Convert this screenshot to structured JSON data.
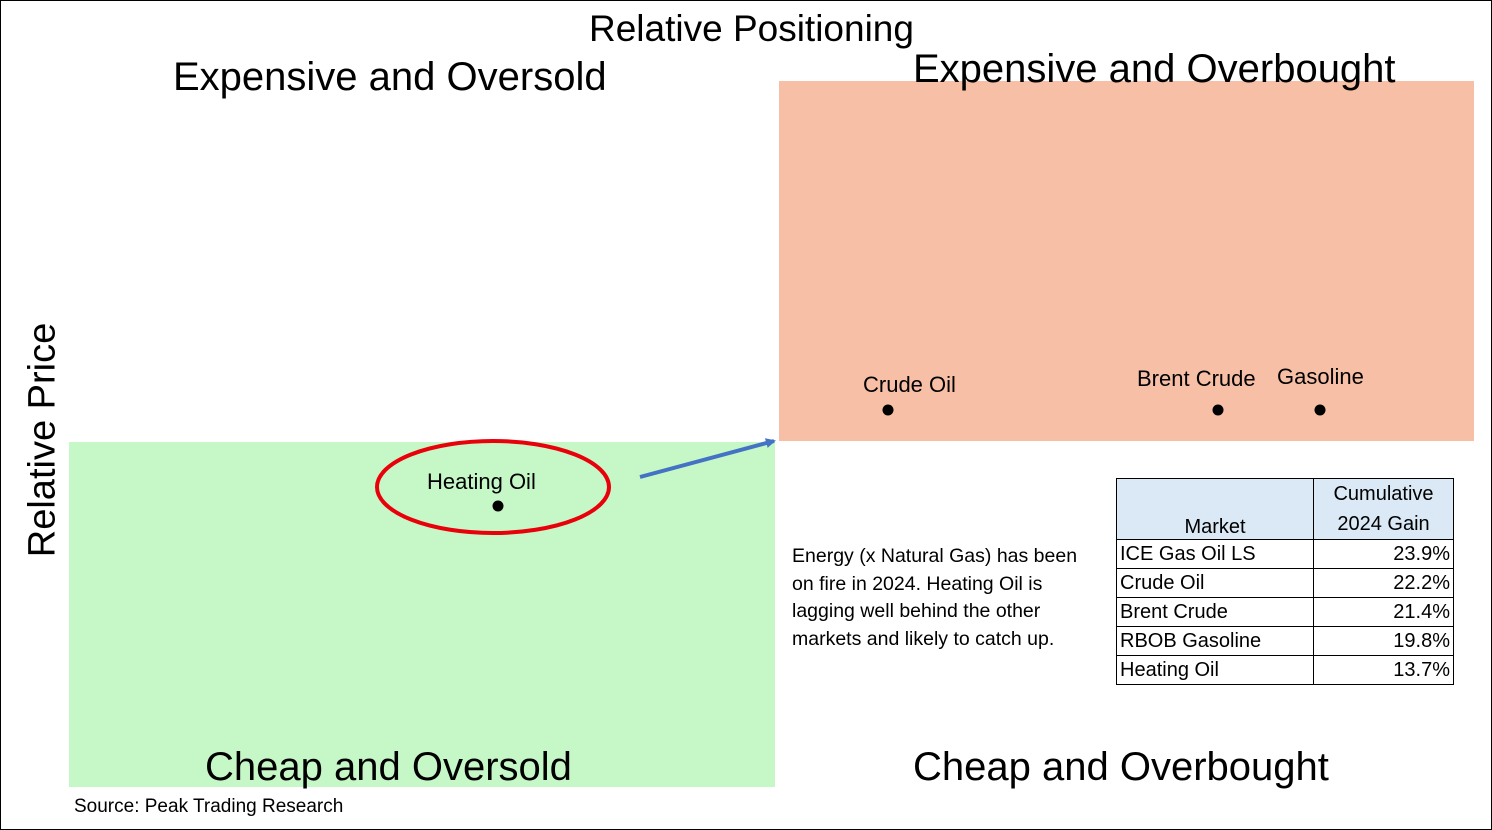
{
  "chart_data": {
    "type": "scatter",
    "title": "Relative Positioning",
    "ylabel": "Relative Price",
    "quadrants": {
      "top_left": "Expensive and Oversold",
      "top_right": "Expensive and Overbought",
      "bottom_left": "Cheap and Oversold",
      "bottom_right": "Cheap and Overbought"
    },
    "points": [
      {
        "label": "Heating Oil",
        "quadrant": "Cheap and Oversold",
        "highlighted": true
      },
      {
        "label": "Crude Oil",
        "quadrant": "Expensive and Overbought"
      },
      {
        "label": "Brent Crude",
        "quadrant": "Expensive and Overbought"
      },
      {
        "label": "Gasoline",
        "quadrant": "Expensive and Overbought"
      }
    ],
    "colors": {
      "cheap_oversold_zone": "#c6f7c6",
      "expensive_overbought_zone": "#f7bfa6",
      "highlight_ellipse": "#e8000b",
      "arrow": "#4472c4"
    }
  },
  "note": "Energy (x Natural Gas) has been on fire in 2024.  Heating Oil is lagging well behind the other markets and likely to catch up.",
  "table": {
    "header_market": "Market",
    "header_gain_line1": "Cumulative",
    "header_gain_line2": "2024 Gain",
    "rows": [
      {
        "market": "ICE Gas Oil LS",
        "gain": "23.9%"
      },
      {
        "market": "Crude Oil",
        "gain": "22.2%"
      },
      {
        "market": "Brent Crude",
        "gain": "21.4%"
      },
      {
        "market": "RBOB Gasoline",
        "gain": "19.8%"
      },
      {
        "market": "Heating Oil",
        "gain": "13.7%"
      }
    ]
  },
  "source": "Source: Peak Trading Research"
}
